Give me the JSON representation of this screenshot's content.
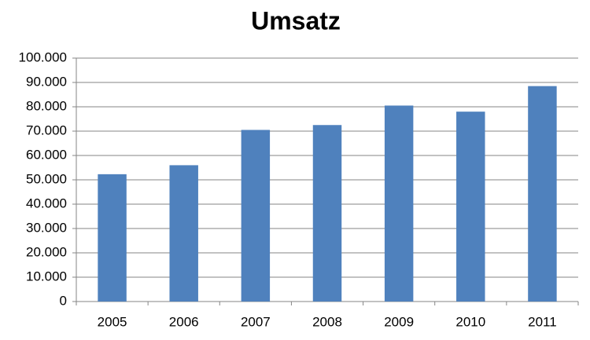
{
  "chart_data": {
    "type": "bar",
    "title": "Umsatz",
    "categories": [
      "2005",
      "2006",
      "2007",
      "2008",
      "2009",
      "2010",
      "2011"
    ],
    "values": [
      52300,
      56000,
      70500,
      72500,
      80500,
      78000,
      88500
    ],
    "color": "#4f81bd",
    "ylim": [
      0,
      100000
    ],
    "yticks": [
      0,
      {
        "value": 10000,
        "label": "10.000"
      },
      {
        "value": 20000,
        "label": "20.000"
      },
      {
        "value": 30000,
        "label": "30.000"
      },
      {
        "value": 40000,
        "label": "40.000"
      },
      {
        "value": 50000,
        "label": "50.000"
      },
      {
        "value": 60000,
        "label": "60.000"
      },
      {
        "value": 70000,
        "label": "70.000"
      },
      {
        "value": 80000,
        "label": "80.000"
      },
      {
        "value": 90000,
        "label": "90.000"
      },
      {
        "value": 100000,
        "label": "100.000"
      }
    ],
    "grid": true
  }
}
